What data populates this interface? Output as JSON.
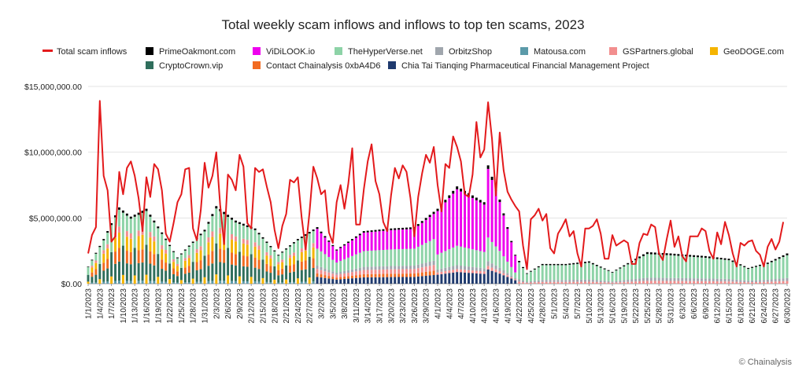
{
  "chart_data": {
    "type": "bar",
    "title": "Total weekly scam inflows and inflows to top ten scams, 2023",
    "xlabel": "",
    "ylabel": "",
    "ylim": [
      0,
      15000000
    ],
    "yticks": [
      0,
      5000000,
      10000000,
      15000000
    ],
    "ytick_labels": [
      "$0.00",
      "$5,000,000.00",
      "$10,000,000.00",
      "$15,000,000.00"
    ],
    "xtick_labels": [
      "1/1/2023",
      "1/4/2023",
      "1/7/2023",
      "1/10/2023",
      "1/13/2023",
      "1/16/2023",
      "1/19/2023",
      "1/22/2023",
      "1/25/2023",
      "1/28/2023",
      "1/31/2023",
      "2/3/2023",
      "2/6/2023",
      "2/9/2023",
      "2/12/2023",
      "2/15/2023",
      "2/18/2023",
      "2/21/2023",
      "2/24/2023",
      "2/27/2023",
      "3/2/2023",
      "3/5/2023",
      "3/8/2023",
      "3/11/2023",
      "3/14/2023",
      "3/17/2023",
      "3/20/2023",
      "3/23/2023",
      "3/26/2023",
      "3/29/2023",
      "4/1/2023",
      "4/4/2023",
      "4/7/2023",
      "4/10/2023",
      "4/13/2023",
      "4/16/2023",
      "4/19/2023",
      "4/22/2023",
      "4/25/2023",
      "4/28/2023",
      "5/1/2023",
      "5/4/2023",
      "5/7/2023",
      "5/10/2023",
      "5/13/2023",
      "5/16/2023",
      "5/19/2023",
      "5/22/2023",
      "5/25/2023",
      "5/28/2023",
      "5/31/2023",
      "6/3/2023",
      "6/6/2023",
      "6/9/2023",
      "6/12/2023",
      "6/15/2023",
      "6/18/2023",
      "6/21/2023",
      "6/24/2023",
      "6/27/2023",
      "6/30/2023"
    ],
    "legend_placement": "top",
    "grid": "horizontal",
    "line_series": {
      "name": "Total scam inflows",
      "color": "#e31a1c",
      "checkpoints": [
        [
          "1/1/2023",
          2300000
        ],
        [
          "1/2/2023",
          3700000
        ],
        [
          "1/3/2023",
          4300000
        ],
        [
          "1/4/2023",
          13900000
        ],
        [
          "1/5/2023",
          8200000
        ],
        [
          "1/6/2023",
          7100000
        ],
        [
          "1/7/2023",
          3200000
        ],
        [
          "1/8/2023",
          3600000
        ],
        [
          "1/9/2023",
          8500000
        ],
        [
          "1/10/2023",
          6800000
        ],
        [
          "1/11/2023",
          8800000
        ],
        [
          "1/12/2023",
          9300000
        ],
        [
          "1/13/2023",
          8200000
        ],
        [
          "1/14/2023",
          6500000
        ],
        [
          "1/15/2023",
          4000000
        ],
        [
          "1/16/2023",
          8100000
        ],
        [
          "1/17/2023",
          6600000
        ],
        [
          "1/18/2023",
          9100000
        ],
        [
          "1/19/2023",
          8700000
        ],
        [
          "1/20/2023",
          7100000
        ],
        [
          "1/21/2023",
          3800000
        ],
        [
          "1/22/2023",
          3200000
        ],
        [
          "1/23/2023",
          4600000
        ],
        [
          "1/24/2023",
          6200000
        ],
        [
          "1/25/2023",
          6800000
        ],
        [
          "1/26/2023",
          8700000
        ],
        [
          "1/27/2023",
          8800000
        ],
        [
          "1/28/2023",
          4200000
        ],
        [
          "1/29/2023",
          3300000
        ],
        [
          "1/30/2023",
          5600000
        ],
        [
          "1/31/2023",
          9200000
        ],
        [
          "2/1/2023",
          7300000
        ],
        [
          "2/2/2023",
          8200000
        ],
        [
          "2/3/2023",
          10000000
        ],
        [
          "2/4/2023",
          6000000
        ],
        [
          "2/5/2023",
          3000000
        ],
        [
          "2/6/2023",
          8300000
        ],
        [
          "2/7/2023",
          7900000
        ],
        [
          "2/8/2023",
          7100000
        ],
        [
          "2/9/2023",
          9800000
        ],
        [
          "2/10/2023",
          8900000
        ],
        [
          "2/11/2023",
          4600000
        ],
        [
          "2/12/2023",
          4200000
        ],
        [
          "2/13/2023",
          8800000
        ],
        [
          "2/14/2023",
          8500000
        ],
        [
          "2/15/2023",
          8700000
        ],
        [
          "2/16/2023",
          7400000
        ],
        [
          "2/17/2023",
          6200000
        ],
        [
          "2/18/2023",
          4100000
        ],
        [
          "2/19/2023",
          2700000
        ],
        [
          "2/20/2023",
          4400000
        ],
        [
          "2/21/2023",
          5300000
        ],
        [
          "2/22/2023",
          7900000
        ],
        [
          "2/23/2023",
          7700000
        ],
        [
          "2/24/2023",
          8100000
        ],
        [
          "2/25/2023",
          5000000
        ],
        [
          "2/26/2023",
          2600000
        ],
        [
          "2/27/2023",
          5400000
        ],
        [
          "2/28/2023",
          8900000
        ],
        [
          "3/1/2023",
          8000000
        ],
        [
          "3/2/2023",
          6800000
        ],
        [
          "3/3/2023",
          7100000
        ],
        [
          "3/4/2023",
          3900000
        ],
        [
          "3/5/2023",
          3100000
        ],
        [
          "3/6/2023",
          6200000
        ],
        [
          "3/7/2023",
          7500000
        ],
        [
          "3/8/2023",
          5700000
        ],
        [
          "3/9/2023",
          7600000
        ],
        [
          "3/10/2023",
          10300000
        ],
        [
          "3/11/2023",
          4500000
        ],
        [
          "3/12/2023",
          4500000
        ],
        [
          "3/13/2023",
          7200000
        ],
        [
          "3/14/2023",
          9300000
        ],
        [
          "3/15/2023",
          10600000
        ],
        [
          "3/16/2023",
          7800000
        ],
        [
          "3/17/2023",
          6800000
        ],
        [
          "3/18/2023",
          4700000
        ],
        [
          "3/19/2023",
          4000000
        ],
        [
          "3/20/2023",
          6700000
        ],
        [
          "3/21/2023",
          8800000
        ],
        [
          "3/22/2023",
          8000000
        ],
        [
          "3/23/2023",
          9000000
        ],
        [
          "3/24/2023",
          8500000
        ],
        [
          "3/25/2023",
          6500000
        ],
        [
          "3/26/2023",
          3600000
        ],
        [
          "3/27/2023",
          6600000
        ],
        [
          "3/28/2023",
          8400000
        ],
        [
          "3/29/2023",
          9800000
        ],
        [
          "3/30/2023",
          9200000
        ],
        [
          "3/31/2023",
          10400000
        ],
        [
          "4/1/2023",
          7500000
        ],
        [
          "4/2/2023",
          5500000
        ],
        [
          "4/3/2023",
          9100000
        ],
        [
          "4/4/2023",
          8800000
        ],
        [
          "4/5/2023",
          11200000
        ],
        [
          "4/6/2023",
          10400000
        ],
        [
          "4/7/2023",
          9300000
        ],
        [
          "4/8/2023",
          6800000
        ],
        [
          "4/9/2023",
          6600000
        ],
        [
          "4/10/2023",
          8300000
        ],
        [
          "4/11/2023",
          12300000
        ],
        [
          "4/12/2023",
          9600000
        ],
        [
          "4/13/2023",
          10200000
        ],
        [
          "4/14/2023",
          13800000
        ],
        [
          "4/15/2023",
          11000000
        ],
        [
          "4/16/2023",
          6700000
        ],
        [
          "4/17/2023",
          11500000
        ],
        [
          "4/18/2023",
          8600000
        ],
        [
          "4/19/2023",
          7000000
        ],
        [
          "4/20/2023",
          6400000
        ],
        [
          "4/21/2023",
          5900000
        ],
        [
          "4/22/2023",
          5500000
        ],
        [
          "4/23/2023",
          2900000
        ],
        [
          "4/24/2023",
          1100000
        ],
        [
          "4/25/2023",
          4900000
        ],
        [
          "4/26/2023",
          5200000
        ],
        [
          "4/27/2023",
          5700000
        ],
        [
          "4/28/2023",
          4800000
        ],
        [
          "4/29/2023",
          5300000
        ],
        [
          "4/30/2023",
          2700000
        ],
        [
          "5/1/2023",
          2300000
        ],
        [
          "5/2/2023",
          3800000
        ],
        [
          "5/3/2023",
          4300000
        ],
        [
          "5/4/2023",
          4900000
        ],
        [
          "5/5/2023",
          3600000
        ],
        [
          "5/6/2023",
          4000000
        ],
        [
          "5/7/2023",
          2300000
        ],
        [
          "5/8/2023",
          1300000
        ],
        [
          "5/9/2023",
          4200000
        ],
        [
          "5/10/2023",
          4200000
        ],
        [
          "5/11/2023",
          4400000
        ],
        [
          "5/12/2023",
          4900000
        ],
        [
          "5/13/2023",
          3800000
        ],
        [
          "5/14/2023",
          1900000
        ],
        [
          "5/15/2023",
          1900000
        ],
        [
          "5/16/2023",
          3700000
        ],
        [
          "5/17/2023",
          2900000
        ],
        [
          "5/18/2023",
          3100000
        ],
        [
          "5/19/2023",
          3300000
        ],
        [
          "5/20/2023",
          3100000
        ],
        [
          "5/21/2023",
          1500000
        ],
        [
          "5/22/2023",
          1500000
        ],
        [
          "5/23/2023",
          3100000
        ],
        [
          "5/24/2023",
          3800000
        ],
        [
          "5/25/2023",
          3700000
        ],
        [
          "5/26/2023",
          4500000
        ],
        [
          "5/27/2023",
          4300000
        ],
        [
          "5/28/2023",
          2300000
        ],
        [
          "5/29/2023",
          1800000
        ],
        [
          "5/30/2023",
          3400000
        ],
        [
          "5/31/2023",
          4800000
        ],
        [
          "6/1/2023",
          2800000
        ],
        [
          "6/2/2023",
          3600000
        ],
        [
          "6/3/2023",
          2100000
        ],
        [
          "6/4/2023",
          1700000
        ],
        [
          "6/5/2023",
          3600000
        ],
        [
          "6/6/2023",
          3600000
        ],
        [
          "6/7/2023",
          3600000
        ],
        [
          "6/8/2023",
          4200000
        ],
        [
          "6/9/2023",
          4000000
        ],
        [
          "6/10/2023",
          2500000
        ],
        [
          "6/11/2023",
          1900000
        ],
        [
          "6/12/2023",
          3900000
        ],
        [
          "6/13/2023",
          3000000
        ],
        [
          "6/14/2023",
          4700000
        ],
        [
          "6/15/2023",
          3700000
        ],
        [
          "6/16/2023",
          2300000
        ],
        [
          "6/17/2023",
          1300000
        ],
        [
          "6/18/2023",
          3100000
        ],
        [
          "6/19/2023",
          2900000
        ],
        [
          "6/20/2023",
          3200000
        ],
        [
          "6/21/2023",
          3300000
        ],
        [
          "6/22/2023",
          2500000
        ],
        [
          "6/23/2023",
          2200000
        ],
        [
          "6/24/2023",
          1300000
        ],
        [
          "6/25/2023",
          2800000
        ],
        [
          "6/26/2023",
          3400000
        ],
        [
          "6/27/2023",
          2600000
        ],
        [
          "6/28/2023",
          3200000
        ],
        [
          "6/29/2023",
          4700000
        ]
      ]
    },
    "bar_series": [
      {
        "name": "PrimeOakmont.com",
        "color": "#000000"
      },
      {
        "name": "ViDiLOOK.io",
        "color": "#ee00ee"
      },
      {
        "name": "TheHyperVerse.net",
        "color": "#8dd3a7"
      },
      {
        "name": "OrbitzShop",
        "color": "#a0a6ad"
      },
      {
        "name": "Matousa.com",
        "color": "#5b9aa9"
      },
      {
        "name": "GSPartners.global",
        "color": "#f28e8e"
      },
      {
        "name": "GeoDOGE.com",
        "color": "#f5b400"
      },
      {
        "name": "CryptoCrown.vip",
        "color": "#2f6e5c"
      },
      {
        "name": "Contact Chainalysis 0xbA4D6",
        "color": "#f26b21"
      },
      {
        "name": "Chia Tai Tianqing Pharmaceutical Financial Management Project",
        "color": "#1f3a6e"
      }
    ],
    "bar_totals_checkpoints": [
      [
        "1/1/2023",
        1300000
      ],
      [
        "1/5/2023",
        3400000
      ],
      [
        "1/9/2023",
        5800000
      ],
      [
        "1/12/2023",
        5100000
      ],
      [
        "1/16/2023",
        5700000
      ],
      [
        "1/20/2023",
        3900000
      ],
      [
        "1/24/2023",
        2000000
      ],
      [
        "1/31/2023",
        4100000
      ],
      [
        "2/3/2023",
        5900000
      ],
      [
        "2/8/2023",
        4800000
      ],
      [
        "2/13/2023",
        4200000
      ],
      [
        "2/19/2023",
        2200000
      ],
      [
        "2/24/2023",
        3400000
      ],
      [
        "3/1/2023",
        4300000
      ],
      [
        "3/6/2023",
        2600000
      ],
      [
        "3/13/2023",
        4000000
      ],
      [
        "3/20/2023",
        4200000
      ],
      [
        "3/26/2023",
        4300000
      ],
      [
        "4/1/2023",
        5700000
      ],
      [
        "4/6/2023",
        7400000
      ],
      [
        "4/13/2023",
        6200000
      ],
      [
        "4/14/2023",
        9000000
      ],
      [
        "4/17/2023",
        6400000
      ],
      [
        "4/21/2023",
        2200000
      ],
      [
        "4/24/2023",
        800000
      ],
      [
        "4/28/2023",
        1500000
      ],
      [
        "5/4/2023",
        1500000
      ],
      [
        "5/10/2023",
        1700000
      ],
      [
        "5/16/2023",
        900000
      ],
      [
        "5/25/2023",
        2400000
      ],
      [
        "5/31/2023",
        2300000
      ],
      [
        "6/9/2023",
        2100000
      ],
      [
        "6/15/2023",
        1900000
      ],
      [
        "6/20/2023",
        1200000
      ],
      [
        "6/25/2023",
        1600000
      ],
      [
        "6/30/2023",
        2300000
      ]
    ]
  },
  "credit": "© Chainalysis"
}
